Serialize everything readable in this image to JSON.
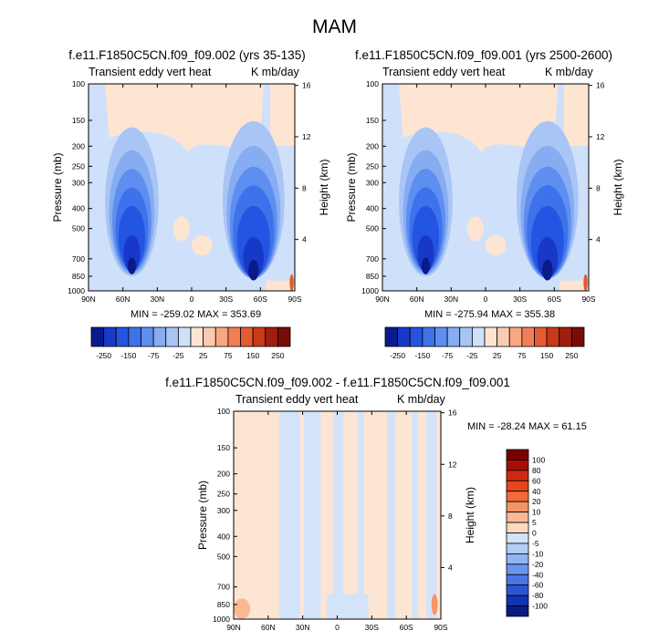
{
  "title": "MAM",
  "panels": [
    {
      "title": "f.e11.F1850C5CN.f09_f09.002 (yrs 35-135)",
      "left_string": "Transient eddy vert heat",
      "right_string": "K mb/day",
      "minmax": "MIN = -259.02  MAX = 353.69"
    },
    {
      "title": "f.e11.F1850C5CN.f09_f09.001 (yrs 2500-2600)",
      "left_string": "Transient eddy vert heat",
      "right_string": "K mb/day",
      "minmax": "MIN = -275.94  MAX = 355.38"
    },
    {
      "title": "f.e11.F1850C5CN.f09_f09.002 - f.e11.F1850C5CN.f09_f09.001",
      "left_string": "Transient eddy vert heat",
      "right_string": "K mb/day",
      "minmax": "MIN = -28.24  MAX = 61.15"
    }
  ],
  "chart_data": [
    {
      "type": "heatmap",
      "title": "f.e11.F1850C5CN.f09_f09.002 (yrs 35-135)",
      "xlabel": "",
      "ylabel": "Pressure (mb)",
      "y2label": "Height (km)",
      "x_ticks": [
        "90N",
        "60N",
        "30N",
        "0",
        "30S",
        "60S",
        "90S"
      ],
      "y_ticks": [
        100,
        150,
        200,
        250,
        300,
        400,
        500,
        700,
        850,
        1000
      ],
      "y2_ticks": [
        16,
        12,
        8,
        4
      ],
      "ylim": [
        1000,
        100
      ],
      "min": -259.02,
      "max": 353.69,
      "colorbar_labels": [
        "-250",
        "-150",
        "-75",
        "-25",
        "25",
        "75",
        "150",
        "250"
      ]
    },
    {
      "type": "heatmap",
      "title": "f.e11.F1850C5CN.f09_f09.001 (yrs 2500-2600)",
      "xlabel": "",
      "ylabel": "Pressure (mb)",
      "y2label": "Height (km)",
      "x_ticks": [
        "90N",
        "60N",
        "30N",
        "0",
        "30S",
        "60S",
        "90S"
      ],
      "y_ticks": [
        100,
        150,
        200,
        250,
        300,
        400,
        500,
        700,
        850,
        1000
      ],
      "y2_ticks": [
        16,
        12,
        8,
        4
      ],
      "ylim": [
        1000,
        100
      ],
      "min": -275.94,
      "max": 355.38,
      "colorbar_labels": [
        "-250",
        "-150",
        "-75",
        "-25",
        "25",
        "75",
        "150",
        "250"
      ]
    },
    {
      "type": "heatmap",
      "title": "f.e11.F1850C5CN.f09_f09.002 - f.e11.F1850C5CN.f09_f09.001",
      "xlabel": "",
      "ylabel": "Pressure (mb)",
      "y2label": "Height (km)",
      "x_ticks": [
        "90N",
        "60N",
        "30N",
        "0",
        "30S",
        "60S",
        "90S"
      ],
      "y_ticks": [
        100,
        150,
        200,
        250,
        300,
        400,
        500,
        700,
        850,
        1000
      ],
      "y2_ticks": [
        16,
        12,
        8,
        4
      ],
      "ylim": [
        1000,
        100
      ],
      "min": -28.24,
      "max": 61.15,
      "colorbar_labels": [
        "100",
        "80",
        "60",
        "40",
        "20",
        "10",
        "5",
        "0",
        "-5",
        "-10",
        "-20",
        "-40",
        "-60",
        "-80",
        "-100"
      ]
    }
  ],
  "colors": {
    "hcolors": [
      "#0a1a8a",
      "#1838c8",
      "#2455e2",
      "#3d72ea",
      "#5e8ef0",
      "#86acf2",
      "#a9c5f5",
      "#cfe0fa",
      "#fde5d2",
      "#fbcbb0",
      "#f9a783",
      "#f27e55",
      "#e55a2e",
      "#c83a18",
      "#a01e10",
      "#7a0c08"
    ],
    "dcolors": [
      "#7a0000",
      "#a51008",
      "#cc2a10",
      "#e54518",
      "#f06a3a",
      "#f79466",
      "#fbb894",
      "#fdd9c3",
      "#fce5d3",
      "#d3e3fa",
      "#b2cdf6",
      "#8fb4f2",
      "#6b95ec",
      "#4a75e4",
      "#2d55d4",
      "#1432b4",
      "#0a1a80"
    ]
  }
}
